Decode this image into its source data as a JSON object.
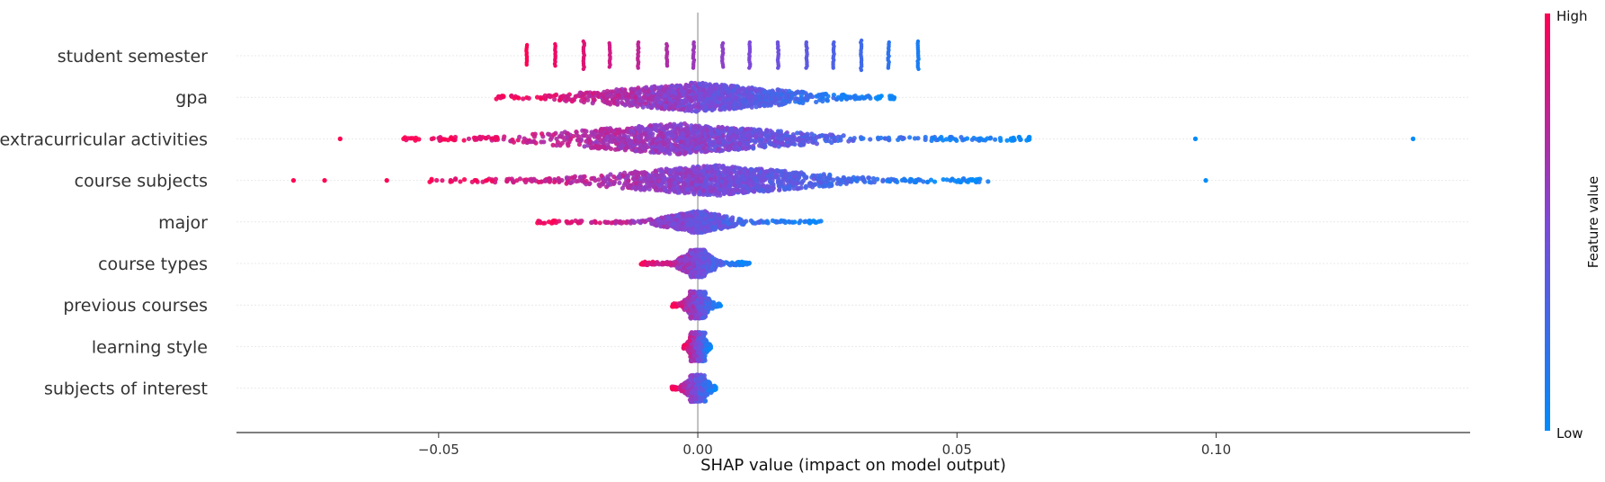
{
  "chart_data": {
    "type": "scatter",
    "chart_kind": "shap_beeswarm_summary",
    "title": "",
    "xlabel": "SHAP value (impact on model output)",
    "ylabel": "",
    "xlim": [
      -0.089,
      0.149
    ],
    "xticks": [
      -0.05,
      0.0,
      0.05,
      0.1
    ],
    "xtick_labels": [
      "−0.05",
      "0.00",
      "0.05",
      "0.10"
    ],
    "grid": false,
    "legend": "none",
    "colorbar": {
      "label": "Feature value",
      "high_label": "High",
      "low_label": "Low",
      "placement": "right",
      "high_color": "#ff0052",
      "low_color": "#008bfb"
    },
    "colors": {
      "high": "#ff0052",
      "low": "#008bfb",
      "zero_line": "#999999",
      "row_guide": "#e9e9e9",
      "axis": "#333333"
    },
    "features": [
      {
        "name": "student semester",
        "distribution": "discrete",
        "points": [
          {
            "x": -0.033,
            "v": 1.0,
            "spread": 12
          },
          {
            "x": -0.0275,
            "v": 0.94,
            "spread": 13
          },
          {
            "x": -0.022,
            "v": 0.87,
            "spread": 16
          },
          {
            "x": -0.017,
            "v": 0.81,
            "spread": 14
          },
          {
            "x": -0.0115,
            "v": 0.75,
            "spread": 15
          },
          {
            "x": -0.006,
            "v": 0.69,
            "spread": 13
          },
          {
            "x": -0.0008,
            "v": 0.62,
            "spread": 15
          },
          {
            "x": 0.0048,
            "v": 0.56,
            "spread": 14
          },
          {
            "x": 0.01,
            "v": 0.5,
            "spread": 15
          },
          {
            "x": 0.0155,
            "v": 0.43,
            "spread": 15
          },
          {
            "x": 0.021,
            "v": 0.37,
            "spread": 15
          },
          {
            "x": 0.0262,
            "v": 0.31,
            "spread": 15
          },
          {
            "x": 0.0315,
            "v": 0.25,
            "spread": 17
          },
          {
            "x": 0.0368,
            "v": 0.18,
            "spread": 15
          },
          {
            "x": 0.0425,
            "v": 0.1,
            "spread": 16
          }
        ]
      },
      {
        "name": "gpa",
        "distribution": "continuous",
        "x_min": -0.039,
        "x_max": 0.038,
        "dense_min": -0.034,
        "dense_max": 0.034,
        "peak": 0.0,
        "max_spread": 16,
        "density": 1200,
        "outliers": []
      },
      {
        "name": "extracurricular activities",
        "distribution": "continuous",
        "x_min": -0.057,
        "x_max": 0.064,
        "dense_min": -0.04,
        "dense_max": 0.037,
        "peak": -0.004,
        "max_spread": 17,
        "density": 1400,
        "outliers": [
          -0.069,
          0.096,
          0.138
        ]
      },
      {
        "name": "course subjects",
        "distribution": "continuous",
        "x_min": -0.052,
        "x_max": 0.056,
        "dense_min": -0.033,
        "dense_max": 0.039,
        "peak": 0.003,
        "max_spread": 17,
        "density": 1300,
        "outliers": [
          -0.078,
          -0.072,
          -0.06,
          0.098
        ]
      },
      {
        "name": "major",
        "distribution": "continuous",
        "x_min": -0.031,
        "x_max": 0.024,
        "dense_min": -0.012,
        "dense_max": 0.011,
        "peak": 0.0,
        "max_spread": 12,
        "density": 850,
        "outliers": []
      },
      {
        "name": "course types",
        "distribution": "continuous",
        "x_min": -0.011,
        "x_max": 0.01,
        "dense_min": -0.006,
        "dense_max": 0.005,
        "peak": 0.0,
        "max_spread": 15,
        "density": 750,
        "outliers": []
      },
      {
        "name": "previous courses",
        "distribution": "continuous",
        "x_min": -0.005,
        "x_max": 0.0045,
        "dense_min": -0.004,
        "dense_max": 0.004,
        "peak": 0.0,
        "max_spread": 15,
        "density": 650,
        "outliers": []
      },
      {
        "name": "learning style",
        "distribution": "continuous",
        "x_min": -0.0028,
        "x_max": 0.0025,
        "dense_min": -0.0028,
        "dense_max": 0.0025,
        "peak": 0.0,
        "max_spread": 16,
        "density": 650,
        "outliers": []
      },
      {
        "name": "subjects of interest",
        "distribution": "continuous",
        "x_min": -0.005,
        "x_max": 0.0035,
        "dense_min": -0.004,
        "dense_max": 0.003,
        "peak": 0.0,
        "max_spread": 15,
        "density": 700,
        "outliers": []
      }
    ]
  }
}
